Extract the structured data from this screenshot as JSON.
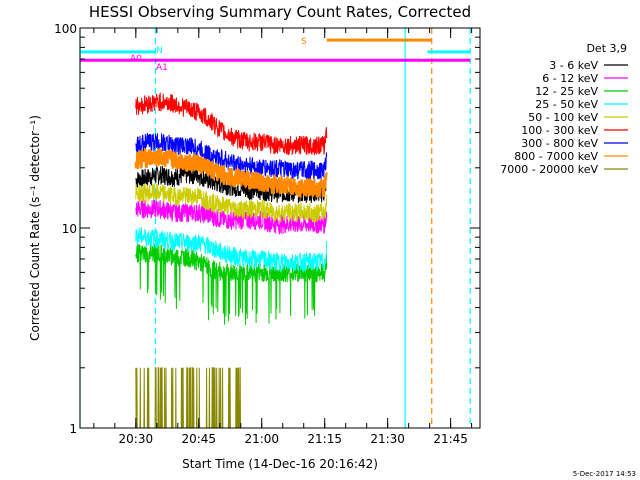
{
  "chart_data": {
    "type": "line",
    "title": "HESSI Observing Summary Count Rates, Corrected",
    "xlabel": "Start Time (14-Dec-16 20:16:42)",
    "ylabel": "Corrected Count Rate (s⁻¹ detector⁻¹)",
    "yscale": "log",
    "ylim": [
      1,
      100
    ],
    "xlim": [
      "20:16:42",
      "21:52:00"
    ],
    "x_ticks": [
      "20:30",
      "20:45",
      "21:00",
      "21:15",
      "21:30",
      "21:45"
    ],
    "y_ticks": [
      "1",
      "10",
      "100"
    ],
    "grid": false,
    "legend_position": "right",
    "legend_title": "Det 3,9",
    "series": [
      {
        "name": "3 - 6 keV",
        "color": "#000000",
        "x": [
          "20:30:00",
          "20:33:00",
          "20:36:00",
          "20:39:00",
          "20:42:00",
          "20:45:00",
          "20:48:00",
          "20:51:00",
          "20:54:00",
          "20:57:00",
          "21:00:00",
          "21:03:00",
          "21:06:00",
          "21:09:00",
          "21:12:00",
          "21:15:00",
          "21:15:30"
        ],
        "values": [
          17.5,
          18,
          18.5,
          18,
          18.5,
          18.5,
          17,
          16.5,
          16,
          15.5,
          15.5,
          15,
          15,
          15,
          15,
          15,
          18
        ]
      },
      {
        "name": "6 - 12 keV",
        "color": "#ff00ff",
        "x": [
          "20:30:00",
          "20:33:00",
          "20:36:00",
          "20:39:00",
          "20:42:00",
          "20:45:00",
          "20:48:00",
          "20:51:00",
          "20:54:00",
          "20:57:00",
          "21:00:00",
          "21:03:00",
          "21:06:00",
          "21:09:00",
          "21:12:00",
          "21:15:00",
          "21:15:30"
        ],
        "values": [
          12.5,
          12.5,
          12.5,
          12,
          12,
          12,
          11.5,
          11,
          11,
          11,
          11,
          10.5,
          10.5,
          10.5,
          10.5,
          10.5,
          12
        ]
      },
      {
        "name": "12 - 25 keV",
        "color": "#00cc00",
        "x": [
          "20:30:00",
          "20:33:00",
          "20:36:00",
          "20:39:00",
          "20:42:00",
          "20:45:00",
          "20:48:00",
          "20:51:00",
          "20:54:00",
          "20:57:00",
          "21:00:00",
          "21:03:00",
          "21:06:00",
          "21:09:00",
          "21:12:00",
          "21:15:00",
          "21:15:30"
        ],
        "values": [
          7.5,
          7.5,
          7.5,
          7.2,
          7.2,
          6.8,
          6.3,
          6,
          6,
          6,
          6,
          6,
          6,
          6,
          6,
          6,
          7
        ]
      },
      {
        "name": "25 - 50 keV",
        "color": "#00ffff",
        "x": [
          "20:30:00",
          "20:33:00",
          "20:36:00",
          "20:39:00",
          "20:42:00",
          "20:45:00",
          "20:48:00",
          "20:51:00",
          "20:54:00",
          "20:57:00",
          "21:00:00",
          "21:03:00",
          "21:06:00",
          "21:09:00",
          "21:12:00",
          "21:15:00",
          "21:15:30"
        ],
        "values": [
          9.2,
          9,
          8.8,
          8.6,
          8.5,
          8.5,
          8,
          7.5,
          7.2,
          7,
          7,
          6.8,
          6.8,
          6.8,
          6.8,
          6.8,
          8
        ]
      },
      {
        "name": "50 - 100 keV",
        "color": "#cccc00",
        "x": [
          "20:30:00",
          "20:33:00",
          "20:36:00",
          "20:39:00",
          "20:42:00",
          "20:45:00",
          "20:48:00",
          "20:51:00",
          "20:54:00",
          "20:57:00",
          "21:00:00",
          "21:03:00",
          "21:06:00",
          "21:09:00",
          "21:12:00",
          "21:15:00",
          "21:15:30"
        ],
        "values": [
          15,
          15,
          15,
          14.5,
          14.5,
          14.5,
          13.5,
          13,
          12.5,
          12.5,
          12.5,
          12,
          12,
          12,
          12,
          12,
          14
        ]
      },
      {
        "name": "100 - 300 keV",
        "color": "#ff0000",
        "x": [
          "20:30:00",
          "20:33:00",
          "20:36:00",
          "20:39:00",
          "20:42:00",
          "20:45:00",
          "20:48:00",
          "20:51:00",
          "20:54:00",
          "20:57:00",
          "21:00:00",
          "21:03:00",
          "21:06:00",
          "21:09:00",
          "21:12:00",
          "21:15:00",
          "21:15:30"
        ],
        "values": [
          41,
          42,
          43,
          42,
          40,
          38,
          34,
          30,
          28,
          27,
          27,
          26,
          26,
          26,
          26,
          26,
          32
        ]
      },
      {
        "name": "300 - 800 keV",
        "color": "#0000ff",
        "x": [
          "20:30:00",
          "20:33:00",
          "20:36:00",
          "20:39:00",
          "20:42:00",
          "20:45:00",
          "20:48:00",
          "20:51:00",
          "20:54:00",
          "20:57:00",
          "21:00:00",
          "21:03:00",
          "21:06:00",
          "21:09:00",
          "21:12:00",
          "21:15:00",
          "21:15:30"
        ],
        "values": [
          26,
          27,
          27,
          26,
          26,
          25,
          23,
          22,
          21,
          20.5,
          20,
          20,
          19.5,
          19.5,
          19.5,
          19.5,
          23
        ]
      },
      {
        "name": "800 - 7000 keV",
        "color": "#ff8800",
        "x": [
          "20:30:00",
          "20:33:00",
          "20:36:00",
          "20:39:00",
          "20:42:00",
          "20:45:00",
          "20:48:00",
          "20:51:00",
          "20:54:00",
          "20:57:00",
          "21:00:00",
          "21:03:00",
          "21:06:00",
          "21:09:00",
          "21:12:00",
          "21:15:00",
          "21:15:30"
        ],
        "values": [
          22,
          22.5,
          22.5,
          22,
          21.5,
          21,
          19.5,
          18.5,
          18,
          17.5,
          17,
          16.5,
          16.5,
          16,
          16,
          16,
          18
        ]
      },
      {
        "name": "7000 - 20000 keV",
        "color": "#888800",
        "x": [
          "20:30:00",
          "20:33:00",
          "20:36:00",
          "20:39:00",
          "20:42:00",
          "20:45:00",
          "20:48:00",
          "20:51:00",
          "20:54:00",
          "20:57:00",
          "21:00:00",
          "21:03:00",
          "21:06:00",
          "21:09:00",
          "21:12:00",
          "21:15:00",
          "21:15:30"
        ],
        "values": [
          1,
          1,
          1,
          1,
          1,
          1,
          1,
          1,
          1,
          1,
          1,
          1,
          1,
          1,
          1,
          1,
          1
        ]
      }
    ],
    "attenuator_bars": [
      {
        "label": "A0",
        "color": "#00ffff",
        "segments": [
          [
            "20:16:42",
            "20:34:40"
          ],
          [
            "21:39:30",
            "21:49:40"
          ]
        ],
        "level": 76
      },
      {
        "label": "A1",
        "color": "#ff00ff",
        "segments": [
          [
            "20:16:42",
            "21:49:40"
          ]
        ],
        "level": 69
      },
      {
        "label": "S",
        "color": "#ff8800",
        "segments": [
          [
            "21:15:30",
            "21:25:00"
          ],
          [
            "21:25:00",
            "21:40:30"
          ]
        ],
        "level": 87
      }
    ],
    "marker_labels": {
      "a0": "A0",
      "a1": "A1",
      "n": "N",
      "s": "S"
    },
    "vertical_lines": [
      {
        "time": "20:16:42",
        "color": "#00ffff",
        "dashed": false
      },
      {
        "time": "20:34:40",
        "color": "#00ffff",
        "dashed": true
      },
      {
        "time": "21:34:10",
        "color": "#00ffff",
        "dashed": false
      },
      {
        "time": "21:40:30",
        "color": "#ff8800",
        "dashed": true
      },
      {
        "time": "21:49:40",
        "color": "#00ffff",
        "dashed": true
      }
    ]
  },
  "footer": {
    "timestamp": "5-Dec-2017 14:53"
  }
}
